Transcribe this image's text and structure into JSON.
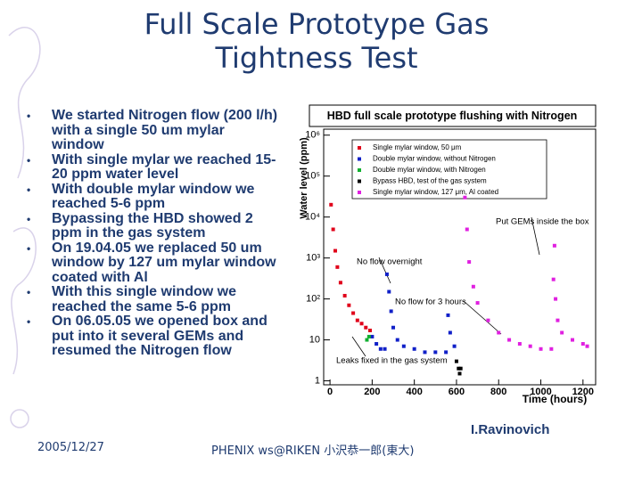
{
  "title": "Full Scale Prototype Gas Tightness Test",
  "bullets": [
    "We started Nitrogen flow (200 l/h) with a single 50 um mylar window",
    "With single mylar we reached 15-20 ppm water level",
    "With double mylar window we reached 5-6 ppm",
    "Bypassing the HBD showed 2 ppm in the gas system",
    "On 19.04.05 we replaced 50 um window by 127 um mylar window coated with Al",
    "With this single window we reached the same 5-6 ppm",
    "On 06.05.05 we opened box and put into it several GEMs and resumed the Nitrogen flow"
  ],
  "author": "I.Ravinovich",
  "footer": {
    "date": "2005/12/27",
    "event": "PHENIX ws@RIKEN 小沢恭一郎(東大)"
  },
  "chart_data": {
    "type": "scatter",
    "title": "HBD full scale prototype flushing with Nitrogen",
    "x_label": "Time (hours)",
    "y_label": "Water level (ppm)",
    "xlim": [
      -30,
      1260
    ],
    "ylim": [
      0.8,
      1400000
    ],
    "log_y": true,
    "xticks": [
      0,
      200,
      400,
      600,
      800,
      1000,
      1200
    ],
    "yticks": [
      1,
      10,
      {
        "value": 100,
        "label": "10²"
      },
      {
        "value": 1000,
        "label": "10³"
      },
      {
        "value": 10000,
        "label": "10⁴"
      },
      {
        "value": 100000,
        "label": "10⁵"
      },
      {
        "value": 1000000,
        "label": "10⁶"
      }
    ],
    "annotations": [
      "No flow overnight",
      "No flow for 3 hours",
      "Put GEMs inside the box",
      "Leaks fixed in the gas system"
    ],
    "series": [
      {
        "name": "Single mylar window, 50 μm",
        "color": "#e0001a",
        "x": [
          5,
          15,
          25,
          35,
          50,
          70,
          90,
          110,
          130,
          150,
          170,
          190
        ],
        "values": [
          20000,
          5000,
          1500,
          600,
          250,
          120,
          70,
          45,
          30,
          25,
          20,
          17
        ]
      },
      {
        "name": "Double mylar window, without Nitrogen",
        "color": "#1020c8",
        "x": [
          200,
          220,
          240,
          260,
          270,
          280,
          290,
          300,
          320,
          350,
          400,
          450,
          500,
          550,
          560,
          570,
          590
        ],
        "values": [
          12,
          8,
          6,
          6,
          400,
          150,
          50,
          20,
          10,
          7,
          6,
          5,
          5,
          5,
          40,
          15,
          7
        ]
      },
      {
        "name": "Double mylar window, with Nitrogen",
        "color": "#10b030",
        "x": [
          175,
          185
        ],
        "values": [
          10,
          12
        ]
      },
      {
        "name": "Bypass HBD, test of the gas system",
        "color": "#000000",
        "x": [
          600,
          610,
          615,
          620
        ],
        "values": [
          3,
          2,
          1.5,
          2
        ]
      },
      {
        "name": "Single mylar window, 127 μm, Al coated",
        "color": "#e020e0",
        "x": [
          640,
          650,
          660,
          680,
          700,
          750,
          800,
          850,
          900,
          950,
          1000,
          1050,
          1060,
          1065,
          1070,
          1080,
          1100,
          1150,
          1200,
          1220
        ],
        "values": [
          30000,
          5000,
          800,
          200,
          80,
          30,
          15,
          10,
          8,
          7,
          6,
          6,
          300,
          2000,
          100,
          30,
          15,
          10,
          8,
          7
        ]
      }
    ]
  }
}
